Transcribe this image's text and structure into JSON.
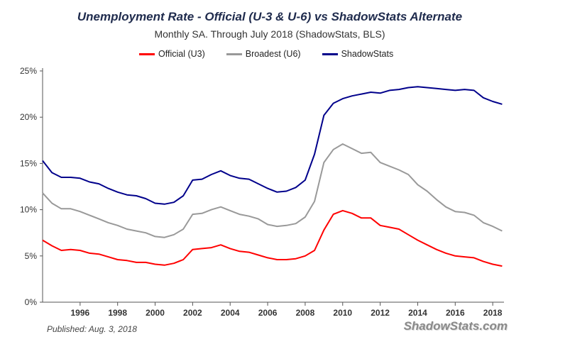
{
  "chart_data": {
    "type": "line",
    "title": "Unemployment Rate - Official (U-3 & U-6) vs ShadowStats Alternate",
    "subtitle": "Monthly SA. Through July 2018  (ShadowStats, BLS)",
    "xlabel": "",
    "ylabel": "",
    "xlim": [
      1994.0,
      2018.6
    ],
    "ylim": [
      0,
      25
    ],
    "y_ticks": [
      0,
      5,
      10,
      15,
      20,
      25
    ],
    "y_tick_labels": [
      "0%",
      "5%",
      "10%",
      "15%",
      "20%",
      "25%"
    ],
    "x_ticks": [
      1996,
      1998,
      2000,
      2002,
      2004,
      2006,
      2008,
      2010,
      2012,
      2014,
      2016,
      2018
    ],
    "x_tick_labels": [
      "1996",
      "1998",
      "2000",
      "2002",
      "2004",
      "2006",
      "2008",
      "2010",
      "2012",
      "2014",
      "2016",
      "2018"
    ],
    "grid": false,
    "legend_position": "top",
    "x": [
      1994.0,
      1994.5,
      1995.0,
      1995.5,
      1996.0,
      1996.5,
      1997.0,
      1997.5,
      1998.0,
      1998.5,
      1999.0,
      1999.5,
      2000.0,
      2000.5,
      2001.0,
      2001.5,
      2002.0,
      2002.5,
      2003.0,
      2003.5,
      2004.0,
      2004.5,
      2005.0,
      2005.5,
      2006.0,
      2006.5,
      2007.0,
      2007.5,
      2008.0,
      2008.5,
      2009.0,
      2009.5,
      2010.0,
      2010.5,
      2011.0,
      2011.5,
      2012.0,
      2012.5,
      2013.0,
      2013.5,
      2014.0,
      2014.5,
      2015.0,
      2015.5,
      2016.0,
      2016.5,
      2017.0,
      2017.5,
      2018.0,
      2018.5
    ],
    "series": [
      {
        "name": "Official (U3)",
        "color": "#ff0000",
        "values": [
          6.7,
          6.1,
          5.6,
          5.7,
          5.6,
          5.3,
          5.2,
          4.9,
          4.6,
          4.5,
          4.3,
          4.3,
          4.1,
          4.0,
          4.2,
          4.6,
          5.7,
          5.8,
          5.9,
          6.2,
          5.8,
          5.5,
          5.4,
          5.1,
          4.8,
          4.6,
          4.6,
          4.7,
          5.0,
          5.6,
          7.8,
          9.5,
          9.9,
          9.6,
          9.1,
          9.1,
          8.3,
          8.1,
          7.9,
          7.3,
          6.7,
          6.2,
          5.7,
          5.3,
          5.0,
          4.9,
          4.8,
          4.4,
          4.1,
          3.9
        ]
      },
      {
        "name": "Broadest (U6)",
        "color": "#999999",
        "values": [
          11.8,
          10.7,
          10.1,
          10.1,
          9.8,
          9.4,
          9.0,
          8.6,
          8.3,
          7.9,
          7.7,
          7.5,
          7.1,
          7.0,
          7.3,
          7.9,
          9.5,
          9.6,
          10.0,
          10.3,
          9.9,
          9.5,
          9.3,
          9.0,
          8.4,
          8.2,
          8.3,
          8.5,
          9.2,
          10.9,
          15.1,
          16.5,
          17.1,
          16.6,
          16.1,
          16.2,
          15.1,
          14.7,
          14.3,
          13.8,
          12.7,
          12.0,
          11.1,
          10.3,
          9.8,
          9.7,
          9.4,
          8.6,
          8.2,
          7.7
        ]
      },
      {
        "name": "ShadowStats",
        "color": "#00008b",
        "values": [
          15.3,
          14.0,
          13.5,
          13.5,
          13.4,
          13.0,
          12.8,
          12.3,
          11.9,
          11.6,
          11.5,
          11.2,
          10.7,
          10.6,
          10.8,
          11.5,
          13.2,
          13.3,
          13.8,
          14.2,
          13.7,
          13.4,
          13.3,
          12.8,
          12.3,
          11.9,
          12.0,
          12.4,
          13.2,
          16.0,
          20.2,
          21.5,
          22.0,
          22.3,
          22.5,
          22.7,
          22.6,
          22.9,
          23.0,
          23.2,
          23.3,
          23.2,
          23.1,
          23.0,
          22.9,
          23.0,
          22.9,
          22.1,
          21.7,
          21.4
        ]
      }
    ]
  },
  "footer": {
    "published": "Published: Aug. 3, 2018",
    "brand": "ShadowStats.com"
  }
}
